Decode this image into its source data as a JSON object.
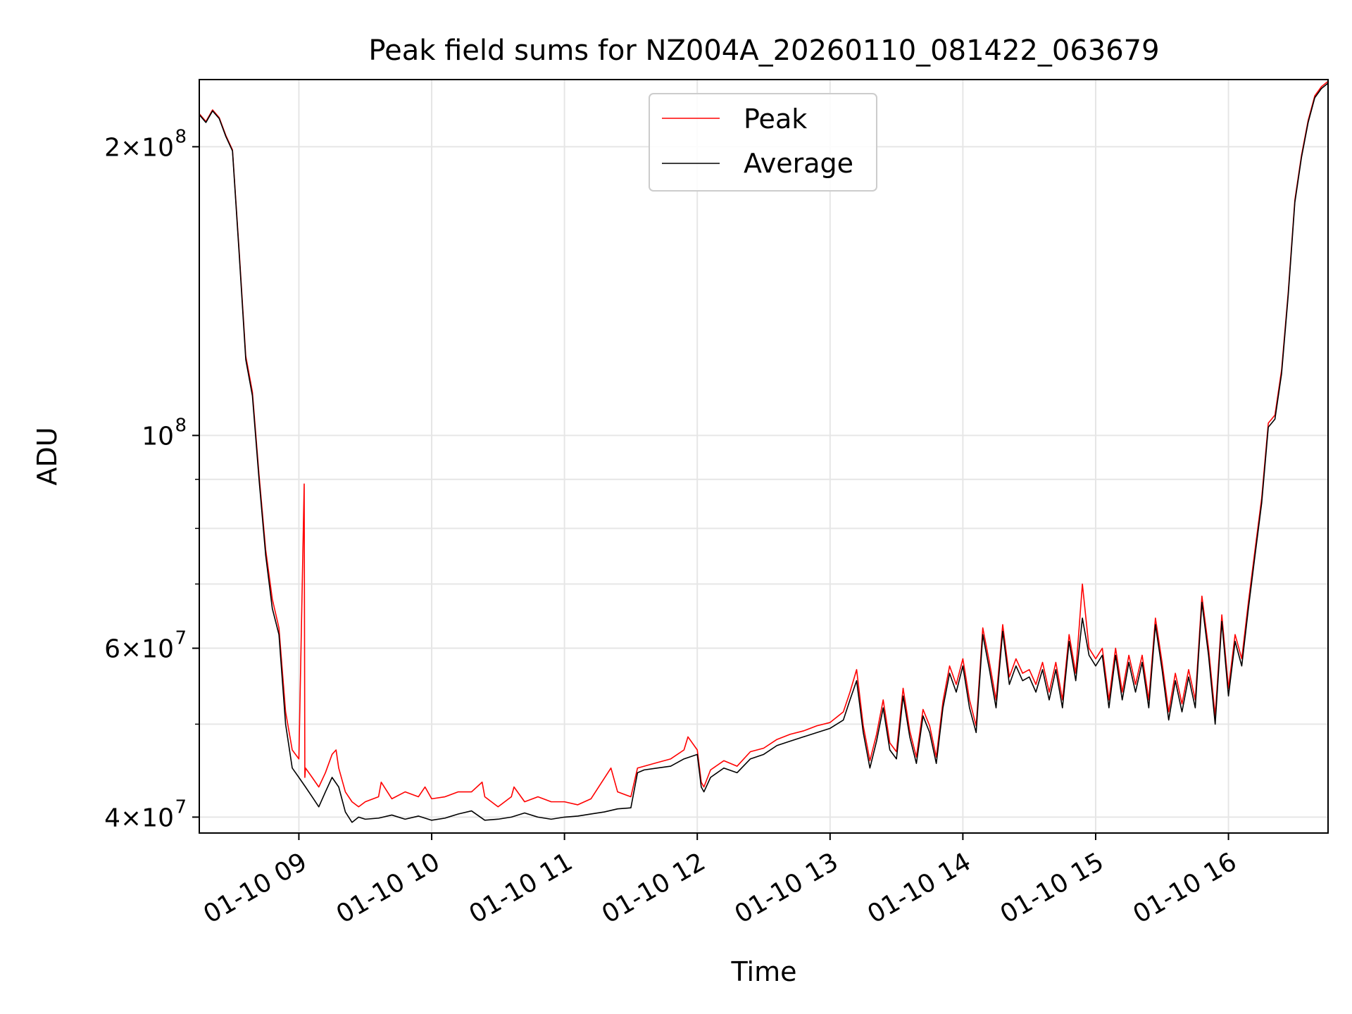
{
  "chart_data": {
    "type": "line",
    "title": "Peak field sums for NZ004A_20260110_081422_063679",
    "xlabel": "Time",
    "ylabel": "ADU",
    "yscale": "log",
    "xlim": [
      8.25,
      16.75
    ],
    "ylim": [
      38500000,
      235000000
    ],
    "grid": true,
    "legend_position": "upper center",
    "x_ticks": [
      {
        "value": 9,
        "label": "01-10 09"
      },
      {
        "value": 10,
        "label": "01-10 10"
      },
      {
        "value": 11,
        "label": "01-10 11"
      },
      {
        "value": 12,
        "label": "01-10 12"
      },
      {
        "value": 13,
        "label": "01-10 13"
      },
      {
        "value": 14,
        "label": "01-10 14"
      },
      {
        "value": 15,
        "label": "01-10 15"
      },
      {
        "value": 16,
        "label": "01-10 16"
      }
    ],
    "y_major_ticks": [
      {
        "value": 40000000,
        "mantissa": "4",
        "base": "10",
        "exp": "7"
      },
      {
        "value": 60000000,
        "mantissa": "6",
        "base": "10",
        "exp": "7"
      },
      {
        "value": 100000000,
        "mantissa": "",
        "base": "10",
        "exp": "8"
      },
      {
        "value": 200000000,
        "mantissa": "2",
        "base": "10",
        "exp": "8"
      }
    ],
    "y_minor_ticks": [
      50000000,
      70000000,
      80000000,
      90000000
    ],
    "series": [
      {
        "name": "Average",
        "color": "#000000",
        "x": [
          8.25,
          8.3,
          8.35,
          8.4,
          8.45,
          8.5,
          8.55,
          8.6,
          8.65,
          8.7,
          8.75,
          8.8,
          8.85,
          8.9,
          8.95,
          9.0,
          9.05,
          9.1,
          9.15,
          9.2,
          9.25,
          9.3,
          9.35,
          9.4,
          9.45,
          9.5,
          9.6,
          9.7,
          9.8,
          9.9,
          10.0,
          10.1,
          10.2,
          10.3,
          10.4,
          10.5,
          10.6,
          10.7,
          10.8,
          10.9,
          11.0,
          11.1,
          11.2,
          11.3,
          11.4,
          11.5,
          11.55,
          11.6,
          11.7,
          11.8,
          11.9,
          12.0,
          12.03,
          12.05,
          12.1,
          12.2,
          12.3,
          12.4,
          12.5,
          12.6,
          12.7,
          12.8,
          12.9,
          13.0,
          13.1,
          13.15,
          13.2,
          13.25,
          13.3,
          13.35,
          13.4,
          13.45,
          13.5,
          13.55,
          13.6,
          13.65,
          13.7,
          13.75,
          13.8,
          13.85,
          13.9,
          13.95,
          14.0,
          14.05,
          14.1,
          14.15,
          14.2,
          14.25,
          14.3,
          14.35,
          14.4,
          14.45,
          14.5,
          14.55,
          14.6,
          14.65,
          14.7,
          14.75,
          14.8,
          14.85,
          14.9,
          14.95,
          15.0,
          15.05,
          15.1,
          15.15,
          15.2,
          15.25,
          15.3,
          15.35,
          15.4,
          15.45,
          15.5,
          15.55,
          15.6,
          15.65,
          15.7,
          15.75,
          15.8,
          15.85,
          15.9,
          15.95,
          16.0,
          16.05,
          16.1,
          16.15,
          16.2,
          16.25,
          16.3,
          16.35,
          16.4,
          16.45,
          16.5,
          16.55,
          16.6,
          16.65,
          16.7,
          16.75
        ],
        "y": [
          216000000,
          212000000,
          218000000,
          214000000,
          205000000,
          198000000,
          155000000,
          120000000,
          110000000,
          90000000,
          75000000,
          66000000,
          62000000,
          50000000,
          45000000,
          44000000,
          43000000,
          42000000,
          41000000,
          42500000,
          44000000,
          43000000,
          40500000,
          39500000,
          40000000,
          39800000,
          39900000,
          40200000,
          39800000,
          40100000,
          39700000,
          39900000,
          40300000,
          40600000,
          39700000,
          39800000,
          40000000,
          40400000,
          40000000,
          39800000,
          40000000,
          40100000,
          40300000,
          40500000,
          40800000,
          40900000,
          44500000,
          44800000,
          45000000,
          45200000,
          46000000,
          46500000,
          43000000,
          42500000,
          44000000,
          45000000,
          44500000,
          46000000,
          46500000,
          47500000,
          48000000,
          48500000,
          49000000,
          49500000,
          50500000,
          53000000,
          55500000,
          49000000,
          45000000,
          48000000,
          52000000,
          47000000,
          46000000,
          53500000,
          48500000,
          45500000,
          51000000,
          49000000,
          45500000,
          52000000,
          56500000,
          54000000,
          57500000,
          52000000,
          49000000,
          62000000,
          57000000,
          52000000,
          62500000,
          55000000,
          57500000,
          55500000,
          56000000,
          54000000,
          57000000,
          53000000,
          57000000,
          52000000,
          61000000,
          55500000,
          64500000,
          59000000,
          57500000,
          59000000,
          52000000,
          59000000,
          53000000,
          58000000,
          54000000,
          58000000,
          52000000,
          63500000,
          57000000,
          50500000,
          55500000,
          51500000,
          56000000,
          52000000,
          67000000,
          59000000,
          50000000,
          64000000,
          53500000,
          61000000,
          57500000,
          66000000,
          75000000,
          85000000,
          102000000,
          104000000,
          116000000,
          140000000,
          175000000,
          195000000,
          212000000,
          225000000,
          230000000,
          233000000
        ],
        "linewidth": 1
      },
      {
        "name": "Peak",
        "color": "#ff0000",
        "x": [
          8.25,
          8.3,
          8.35,
          8.4,
          8.45,
          8.5,
          8.55,
          8.6,
          8.65,
          8.7,
          8.75,
          8.8,
          8.85,
          8.9,
          8.95,
          9.0,
          9.04,
          9.045,
          9.05,
          9.1,
          9.15,
          9.2,
          9.25,
          9.28,
          9.3,
          9.35,
          9.4,
          9.45,
          9.5,
          9.6,
          9.62,
          9.7,
          9.8,
          9.9,
          9.95,
          10.0,
          10.1,
          10.2,
          10.3,
          10.38,
          10.4,
          10.5,
          10.6,
          10.62,
          10.7,
          10.8,
          10.9,
          11.0,
          11.1,
          11.2,
          11.35,
          11.4,
          11.5,
          11.55,
          11.6,
          11.7,
          11.8,
          11.9,
          11.93,
          12.0,
          12.03,
          12.05,
          12.1,
          12.2,
          12.3,
          12.4,
          12.5,
          12.6,
          12.7,
          12.8,
          12.9,
          13.0,
          13.1,
          13.15,
          13.2,
          13.25,
          13.3,
          13.35,
          13.4,
          13.45,
          13.5,
          13.55,
          13.6,
          13.65,
          13.7,
          13.75,
          13.8,
          13.85,
          13.9,
          13.95,
          14.0,
          14.05,
          14.1,
          14.15,
          14.2,
          14.25,
          14.3,
          14.35,
          14.4,
          14.45,
          14.5,
          14.55,
          14.6,
          14.65,
          14.7,
          14.75,
          14.8,
          14.85,
          14.9,
          14.95,
          15.0,
          15.05,
          15.1,
          15.15,
          15.2,
          15.25,
          15.3,
          15.35,
          15.4,
          15.45,
          15.5,
          15.55,
          15.6,
          15.65,
          15.7,
          15.75,
          15.8,
          15.85,
          15.9,
          15.95,
          16.0,
          16.05,
          16.1,
          16.15,
          16.2,
          16.25,
          16.3,
          16.35,
          16.4,
          16.45,
          16.5,
          16.55,
          16.6,
          16.65,
          16.7,
          16.75
        ],
        "y": [
          216500000,
          212500000,
          218500000,
          214500000,
          205500000,
          198500000,
          156000000,
          121000000,
          111000000,
          91000000,
          76000000,
          67500000,
          63000000,
          51500000,
          47000000,
          46000000,
          89000000,
          44000000,
          45000000,
          44000000,
          43000000,
          44500000,
          46500000,
          47000000,
          45000000,
          42500000,
          41500000,
          41000000,
          41500000,
          42000000,
          43500000,
          41800000,
          42500000,
          42000000,
          43000000,
          41800000,
          42000000,
          42500000,
          42500000,
          43500000,
          42000000,
          41000000,
          42000000,
          43000000,
          41500000,
          42000000,
          41500000,
          41500000,
          41200000,
          41800000,
          45000000,
          42500000,
          42000000,
          45000000,
          45200000,
          45600000,
          46000000,
          47000000,
          48500000,
          47000000,
          43500000,
          43000000,
          44800000,
          45800000,
          45200000,
          46800000,
          47200000,
          48200000,
          48800000,
          49200000,
          49800000,
          50200000,
          51500000,
          54000000,
          57000000,
          49800000,
          45800000,
          48800000,
          53000000,
          47800000,
          46800000,
          54500000,
          49200000,
          46200000,
          51800000,
          49800000,
          46200000,
          52800000,
          57500000,
          55000000,
          58500000,
          53000000,
          49800000,
          63000000,
          58000000,
          53000000,
          63500000,
          56000000,
          58500000,
          56500000,
          57000000,
          55000000,
          58000000,
          54000000,
          58000000,
          53000000,
          62000000,
          56500000,
          70000000,
          60000000,
          58500000,
          60000000,
          53000000,
          60000000,
          54000000,
          59000000,
          55000000,
          59000000,
          53000000,
          64500000,
          58000000,
          51500000,
          56500000,
          52500000,
          57000000,
          53000000,
          68000000,
          60000000,
          51000000,
          65000000,
          54500000,
          62000000,
          58500000,
          67000000,
          76000000,
          86000000,
          103000000,
          105000000,
          117000000,
          141000000,
          176000000,
          196000000,
          213000000,
          226000000,
          231000000,
          234000000
        ],
        "linewidth": 1
      }
    ]
  }
}
